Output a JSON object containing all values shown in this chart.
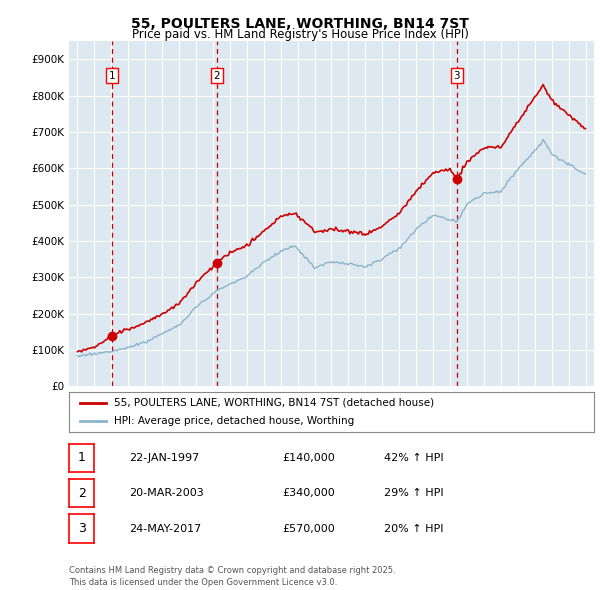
{
  "title": "55, POULTERS LANE, WORTHING, BN14 7ST",
  "subtitle": "Price paid vs. HM Land Registry's House Price Index (HPI)",
  "bg_color": "#dde8f0",
  "plot_bg_color": "#dde8f0",
  "red_line_color": "#cc0000",
  "blue_line_color": "#8ab4cc",
  "dashed_line_color": "#cc0000",
  "sale_dates": [
    1997.06,
    2003.22,
    2017.39
  ],
  "sale_prices": [
    140000,
    340000,
    570000
  ],
  "sale_labels": [
    "1",
    "2",
    "3"
  ],
  "sale_info": [
    {
      "num": "1",
      "date": "22-JAN-1997",
      "price": "£140,000",
      "hpi": "42% ↑ HPI"
    },
    {
      "num": "2",
      "date": "20-MAR-2003",
      "price": "£340,000",
      "hpi": "29% ↑ HPI"
    },
    {
      "num": "3",
      "date": "24-MAY-2017",
      "price": "£570,000",
      "hpi": "20% ↑ HPI"
    }
  ],
  "legend_entries": [
    "55, POULTERS LANE, WORTHING, BN14 7ST (detached house)",
    "HPI: Average price, detached house, Worthing"
  ],
  "footer": "Contains HM Land Registry data © Crown copyright and database right 2025.\nThis data is licensed under the Open Government Licence v3.0.",
  "xlim": [
    1994.5,
    2025.5
  ],
  "ylim": [
    0,
    950000
  ],
  "yticks": [
    0,
    100000,
    200000,
    300000,
    400000,
    500000,
    600000,
    700000,
    800000,
    900000
  ],
  "ytick_labels": [
    "£0",
    "£100K",
    "£200K",
    "£300K",
    "£400K",
    "£500K",
    "£600K",
    "£700K",
    "£800K",
    "£900K"
  ],
  "xticks": [
    1995,
    1996,
    1997,
    1998,
    1999,
    2000,
    2001,
    2002,
    2003,
    2004,
    2005,
    2006,
    2007,
    2008,
    2009,
    2010,
    2011,
    2012,
    2013,
    2014,
    2015,
    2016,
    2017,
    2018,
    2019,
    2020,
    2021,
    2022,
    2023,
    2024,
    2025
  ],
  "red_anchors_x": [
    1995.0,
    1996.0,
    1997.06,
    1998,
    1999,
    2000,
    2001,
    2002,
    2003.22,
    2004,
    2005,
    2006,
    2007,
    2007.8,
    2008.5,
    2009,
    2010,
    2011,
    2012,
    2013,
    2014,
    2015,
    2016,
    2017.0,
    2017.39,
    2018,
    2019,
    2020,
    2021,
    2022,
    2022.5,
    2023,
    2024,
    2025
  ],
  "red_anchors_y": [
    95000,
    108000,
    140000,
    158000,
    175000,
    200000,
    228000,
    285000,
    340000,
    368000,
    388000,
    428000,
    468000,
    478000,
    450000,
    425000,
    432000,
    428000,
    418000,
    442000,
    478000,
    538000,
    588000,
    600000,
    570000,
    618000,
    658000,
    658000,
    728000,
    798000,
    828000,
    788000,
    748000,
    708000
  ],
  "blue_anchors_x": [
    1995.0,
    1996.0,
    1997.06,
    1998,
    1999,
    2000,
    2001,
    2002,
    2003.22,
    2004,
    2005,
    2006,
    2007,
    2007.8,
    2008.5,
    2009,
    2010,
    2011,
    2012,
    2013,
    2014,
    2015,
    2016,
    2017.39,
    2018,
    2019,
    2020,
    2021,
    2022,
    2022.5,
    2023,
    2024,
    2025
  ],
  "blue_anchors_y": [
    83000,
    90000,
    96000,
    108000,
    122000,
    145000,
    168000,
    218000,
    262000,
    282000,
    302000,
    342000,
    372000,
    388000,
    352000,
    328000,
    342000,
    338000,
    328000,
    352000,
    382000,
    432000,
    472000,
    452000,
    502000,
    532000,
    538000,
    598000,
    648000,
    678000,
    642000,
    612000,
    582000
  ]
}
